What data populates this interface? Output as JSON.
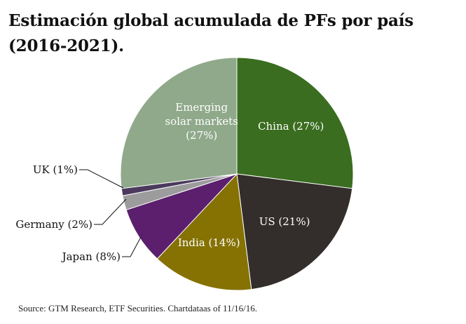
{
  "title": "Estimación global acumulada de PFs por país (2016-2021).",
  "source": "Source: GTM Research, ETF Securities. Chartdataas of 11/16/16.",
  "chart_data": {
    "type": "pie",
    "title": "Estimación global acumulada de PFs por país (2016-2021).",
    "slices": [
      {
        "label": "China (27%)",
        "category": "China",
        "value": 27,
        "color": "#3a6d1f",
        "text_color": "#ffffff",
        "lines": [
          "China (27%)"
        ]
      },
      {
        "label": "US (21%)",
        "category": "US",
        "value": 21,
        "color": "#332e2b",
        "text_color": "#ffffff",
        "lines": [
          "US (21%)"
        ]
      },
      {
        "label": "India (14%)",
        "category": "India",
        "value": 14,
        "color": "#857203",
        "text_color": "#ffffff",
        "lines": [
          "India (14%)"
        ]
      },
      {
        "label": "Japan (8%)",
        "category": "Japan",
        "value": 8,
        "color": "#5b1f6e",
        "text_color": "#111111",
        "lines": [
          "Japan (8%)"
        ]
      },
      {
        "label": "Germany (2%)",
        "category": "Germany",
        "value": 2,
        "color": "#9c9c9c",
        "text_color": "#111111",
        "lines": [
          "Germany (2%)"
        ]
      },
      {
        "label": "UK (1%)",
        "category": "UK",
        "value": 1,
        "color": "#4b3a5e",
        "text_color": "#111111",
        "lines": [
          "UK (1%)"
        ]
      },
      {
        "label": "Emerging solar markets (27%)",
        "category": "Emerging solar markets",
        "value": 27,
        "color": "#8fa98a",
        "text_color": "#ffffff",
        "lines": [
          "Emerging",
          "solar markets",
          "(27%)"
        ]
      }
    ]
  }
}
